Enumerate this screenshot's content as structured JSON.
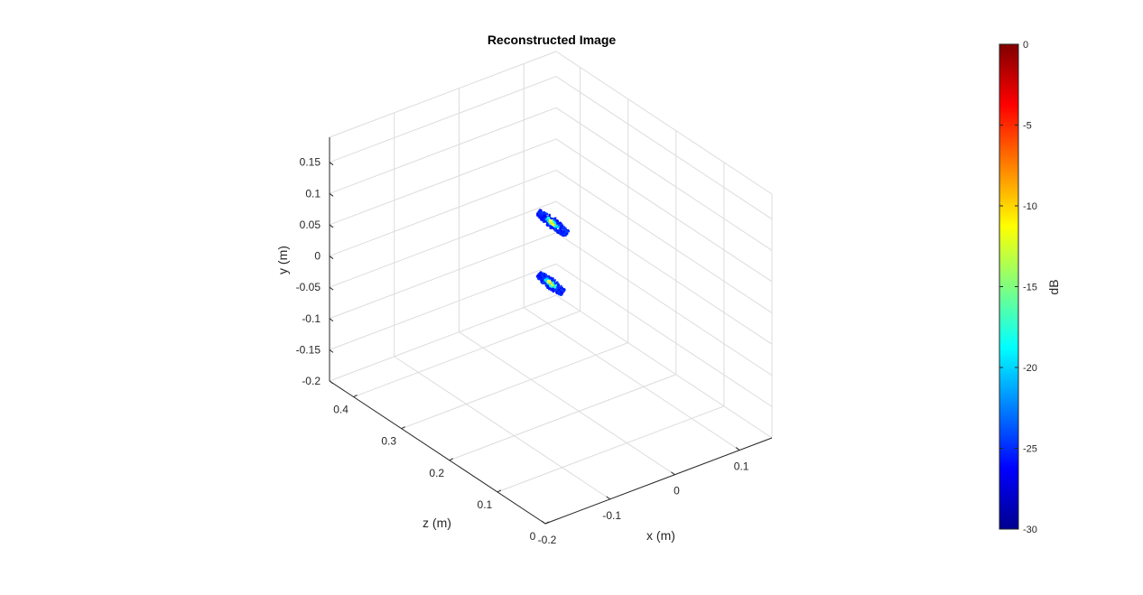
{
  "chart_data": {
    "type": "scatter",
    "title": "Reconstructed Image",
    "xlabel": "x (m)",
    "ylabel": "y (m)",
    "zlabel": "z (m)",
    "x_ticks": [
      "-0.2",
      "-0.1",
      "0",
      "0.1"
    ],
    "y_ticks": [
      "-0.2",
      "-0.15",
      "-0.1",
      "-0.05",
      "0",
      "0.05",
      "0.1",
      "0.15"
    ],
    "z_ticks": [
      "0",
      "0.1",
      "0.2",
      "0.3",
      "0.4"
    ],
    "colorbar": {
      "label": "dB",
      "colormap": "jet",
      "ticks": [
        "0",
        "-5",
        "-10",
        "-15",
        "-20",
        "-25",
        "-30"
      ],
      "range": [
        -30,
        0
      ]
    },
    "series": [
      {
        "color_dB_range": [
          -30,
          -10
        ],
        "points": [
          {
            "x": 0.0,
            "y": 0.05,
            "z": 0.25
          },
          {
            "x": 0.0,
            "y": -0.05,
            "z": 0.25
          }
        ]
      }
    ],
    "grid": true
  }
}
